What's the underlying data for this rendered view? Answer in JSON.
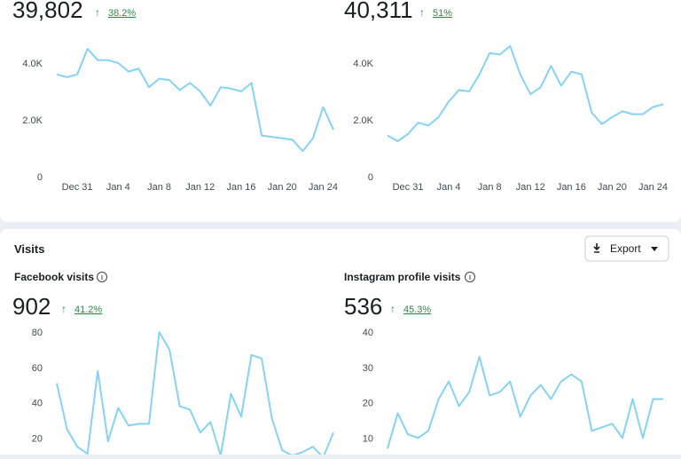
{
  "overview": {
    "cards": [
      {
        "total": "39,802",
        "change": "38.2%",
        "chart_data": {
          "type": "line",
          "color": "#86d3f4",
          "categories": [
            null,
            null,
            "Dec 31",
            null,
            null,
            null,
            "Jan 4",
            null,
            null,
            null,
            "Jan 8",
            null,
            null,
            null,
            "Jan 12",
            null,
            null,
            null,
            "Jan 16",
            null,
            null,
            null,
            "Jan 20",
            null,
            null,
            null,
            "Jan 24",
            null
          ],
          "values": [
            3600,
            3500,
            3600,
            4500,
            4100,
            4100,
            4000,
            3700,
            3800,
            3150,
            3450,
            3400,
            3050,
            3300,
            3000,
            2500,
            3150,
            3100,
            3000,
            3300,
            1450,
            1400,
            1350,
            1300,
            900,
            1350,
            2450,
            1650
          ],
          "ylim": [
            0,
            5000
          ],
          "yticks": [
            0,
            {
              "value": 2000,
              "label": "2.0K"
            },
            {
              "value": 4000,
              "label": "4.0K"
            }
          ]
        }
      },
      {
        "total": "40,311",
        "change": "51%",
        "chart_data": {
          "type": "line",
          "color": "#86d3f4",
          "categories": [
            null,
            null,
            "Dec 31",
            null,
            null,
            null,
            "Jan 4",
            null,
            null,
            null,
            "Jan 8",
            null,
            null,
            null,
            "Jan 12",
            null,
            null,
            null,
            "Jan 16",
            null,
            null,
            null,
            "Jan 20",
            null,
            null,
            null,
            "Jan 24",
            null
          ],
          "values": [
            1450,
            1250,
            1500,
            1900,
            1800,
            2100,
            2650,
            3050,
            3000,
            3600,
            4350,
            4300,
            4600,
            3600,
            2900,
            3150,
            3900,
            3200,
            3700,
            3600,
            2250,
            1850,
            2100,
            2300,
            2200,
            2200,
            2450,
            2550
          ],
          "ylim": [
            0,
            5000
          ],
          "yticks": [
            0,
            {
              "value": 2000,
              "label": "2.0K"
            },
            {
              "value": 4000,
              "label": "4.0K"
            }
          ]
        }
      }
    ]
  },
  "visits": {
    "title": "Visits",
    "export_button": "Export",
    "cards": [
      {
        "label": "Facebook visits",
        "total": "902",
        "change": "41.2%",
        "chart_data": {
          "type": "line",
          "color": "#86d3f4",
          "values": [
            51,
            25,
            15,
            11,
            58,
            18,
            37,
            27,
            28,
            28,
            80,
            70,
            38,
            36,
            23,
            29,
            10,
            45,
            32,
            67,
            65,
            31,
            13,
            10,
            12,
            15,
            9,
            23
          ],
          "ylim": [
            0,
            80
          ],
          "yticks": [
            20,
            40,
            60,
            80
          ]
        }
      },
      {
        "label": "Instagram profile visits",
        "total": "536",
        "change": "45.3%",
        "chart_data": {
          "type": "line",
          "color": "#86d3f4",
          "values": [
            7,
            17,
            11,
            10,
            12,
            21,
            26,
            19,
            23,
            33,
            22,
            23,
            26,
            16,
            22,
            25,
            21,
            26,
            28,
            26,
            12,
            13,
            14,
            10,
            21,
            10,
            21,
            21
          ],
          "ylim": [
            0,
            40
          ],
          "yticks": [
            10,
            20,
            30,
            40
          ]
        }
      }
    ]
  }
}
